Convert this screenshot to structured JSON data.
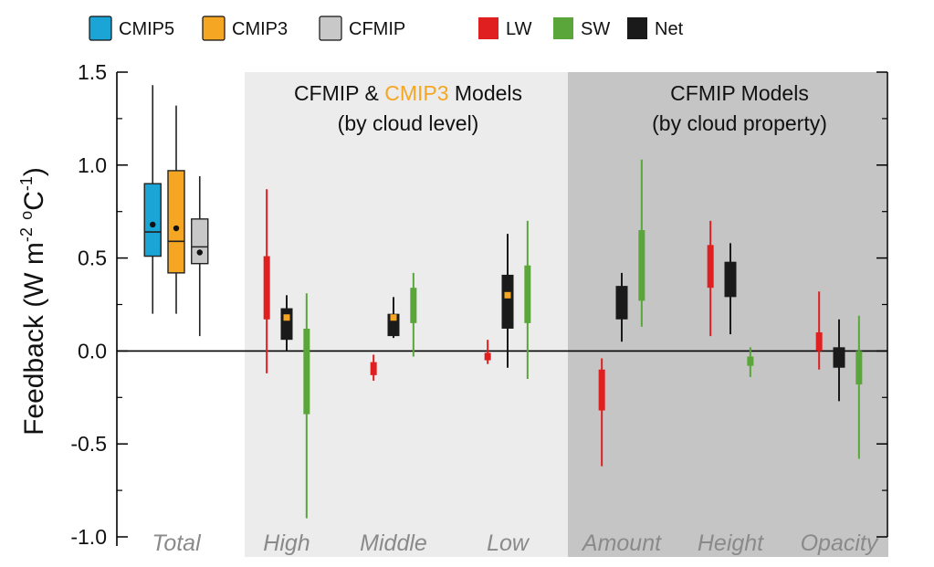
{
  "chart_data": {
    "type": "box",
    "ylabel": "Feedback (W m-2 oC-1)",
    "ylabel_parts": {
      "main": "Feedback (W m",
      "sup1": "-2",
      "mid": " ",
      "sup2": "o",
      "unit": "C",
      "sup3": "-1",
      "end": ")"
    },
    "ylim": [
      -1.0,
      1.5
    ],
    "y_ticks": [
      -1.0,
      -0.5,
      0.0,
      0.5,
      1.0,
      1.5
    ],
    "y_tick_labels": [
      "-1.0",
      "-0.5",
      "0.0",
      "0.5",
      "1.0",
      "1.5"
    ],
    "categories": [
      "Total",
      "High",
      "Middle",
      "Low",
      "Amount",
      "Height",
      "Opacity"
    ],
    "panels": [
      {
        "title_prefix": "CFMIP & ",
        "title_highlight": "CMIP3",
        "title_suffix": " Models",
        "subtitle": "(by cloud level)"
      },
      {
        "title": "CFMIP Models",
        "subtitle": "(by cloud property)"
      }
    ],
    "legend": {
      "models": [
        {
          "name": "CMIP5",
          "color": "#1aa5d6"
        },
        {
          "name": "CMIP3",
          "color": "#f5a623"
        },
        {
          "name": "CFMIP",
          "color": "#c8c8c8"
        }
      ],
      "components": [
        {
          "name": "LW",
          "color": "#e02020"
        },
        {
          "name": "SW",
          "color": "#5aa63a"
        },
        {
          "name": "Net",
          "color": "#1a1a1a"
        }
      ]
    },
    "total_boxes": [
      {
        "name": "CMIP5",
        "color": "#1aa5d6",
        "whisker_low": 0.2,
        "q1": 0.51,
        "median": 0.64,
        "q3": 0.9,
        "whisker_high": 1.43,
        "mean": 0.68
      },
      {
        "name": "CMIP3",
        "color": "#f5a623",
        "whisker_low": 0.2,
        "q1": 0.42,
        "median": 0.59,
        "q3": 0.97,
        "whisker_high": 1.32,
        "mean": 0.66
      },
      {
        "name": "CFMIP",
        "color": "#c8c8c8",
        "whisker_low": 0.08,
        "q1": 0.47,
        "median": 0.56,
        "q3": 0.71,
        "whisker_high": 0.94,
        "mean": 0.53
      }
    ],
    "series": [
      {
        "name": "LW",
        "color": "#e02020",
        "values": [
          {
            "category": "High",
            "whisker_low": -0.12,
            "q1": 0.17,
            "q3": 0.51,
            "whisker_high": 0.87
          },
          {
            "category": "Middle",
            "whisker_low": -0.16,
            "q1": -0.13,
            "q3": -0.06,
            "whisker_high": -0.02
          },
          {
            "category": "Low",
            "whisker_low": -0.07,
            "q1": -0.05,
            "q3": -0.01,
            "whisker_high": 0.06
          },
          {
            "category": "Amount",
            "whisker_low": -0.62,
            "q1": -0.32,
            "q3": -0.1,
            "whisker_high": -0.04
          },
          {
            "category": "Height",
            "whisker_low": 0.08,
            "q1": 0.34,
            "q3": 0.57,
            "whisker_high": 0.7
          },
          {
            "category": "Opacity",
            "whisker_low": -0.1,
            "q1": 0.0,
            "q3": 0.1,
            "whisker_high": 0.32
          }
        ]
      },
      {
        "name": "Net",
        "color": "#1a1a1a",
        "values": [
          {
            "category": "High",
            "whisker_low": 0.0,
            "q1": 0.06,
            "q3": 0.23,
            "whisker_high": 0.3,
            "mean": 0.18,
            "mean_color": "#f5a623"
          },
          {
            "category": "Middle",
            "whisker_low": 0.07,
            "q1": 0.08,
            "q3": 0.2,
            "whisker_high": 0.29,
            "mean": 0.18,
            "mean_color": "#f5a623"
          },
          {
            "category": "Low",
            "whisker_low": -0.09,
            "q1": 0.12,
            "q3": 0.41,
            "whisker_high": 0.63,
            "mean": 0.3,
            "mean_color": "#f5a623"
          },
          {
            "category": "Amount",
            "whisker_low": 0.05,
            "q1": 0.17,
            "q3": 0.35,
            "whisker_high": 0.42
          },
          {
            "category": "Height",
            "whisker_low": 0.09,
            "q1": 0.29,
            "q3": 0.48,
            "whisker_high": 0.58
          },
          {
            "category": "Opacity",
            "whisker_low": -0.27,
            "q1": -0.09,
            "q3": 0.02,
            "whisker_high": 0.17
          }
        ]
      },
      {
        "name": "SW",
        "color": "#5aa63a",
        "values": [
          {
            "category": "High",
            "whisker_low": -0.9,
            "q1": -0.34,
            "q3": 0.12,
            "whisker_high": 0.31
          },
          {
            "category": "Middle",
            "whisker_low": -0.03,
            "q1": 0.15,
            "q3": 0.34,
            "whisker_high": 0.42
          },
          {
            "category": "Low",
            "whisker_low": -0.15,
            "q1": 0.15,
            "q3": 0.46,
            "whisker_high": 0.7
          },
          {
            "category": "Amount",
            "whisker_low": 0.13,
            "q1": 0.27,
            "q3": 0.65,
            "whisker_high": 1.03
          },
          {
            "category": "Height",
            "whisker_low": -0.14,
            "q1": -0.08,
            "q3": -0.03,
            "whisker_high": 0.02
          },
          {
            "category": "Opacity",
            "whisker_low": -0.58,
            "q1": -0.18,
            "q3": 0.0,
            "whisker_high": 0.19
          }
        ]
      }
    ]
  }
}
